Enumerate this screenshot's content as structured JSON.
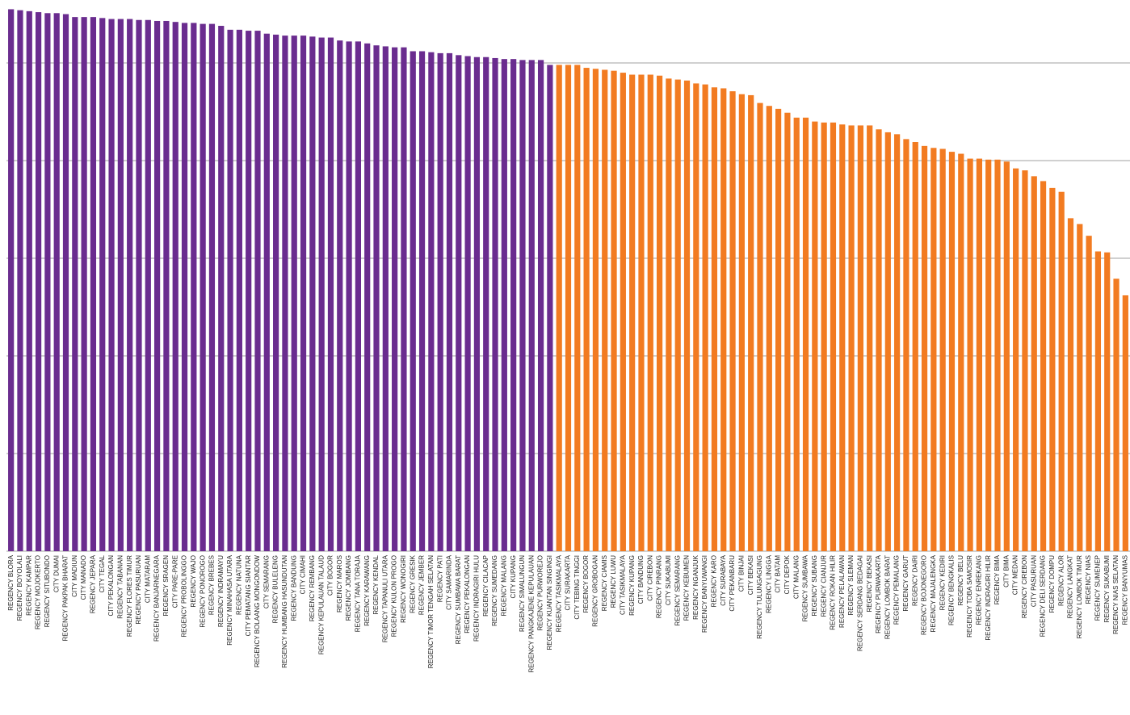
{
  "chart_data": {
    "type": "bar",
    "categories": [
      "REGENCY BLORA",
      "REGENCY BOYOLALI",
      "REGENCY KAMPAR",
      "REGENCY MOJOKERTO",
      "REGENCY SITUBONDO",
      "CITY DUMAI",
      "REGENCY PAKPAK BHARAT",
      "CITY MADIUN",
      "CITY MANADO",
      "REGENCY JEPARA",
      "CITY TEGAL",
      "CITY PEKALONGAN",
      "REGENCY TABANAN",
      "REGENCY FLORES TIMUR",
      "REGENCY PASURUAN",
      "CITY MATARAM",
      "REGENCY BANJARNEGARA",
      "REGENCY SRAGEN",
      "CITY PARE-PARE",
      "REGENCY PROBOLINGGO",
      "REGENCY WAJO",
      "REGENCY PONOROGO",
      "REGENCY BREBES",
      "REGENCY INDRAMAYU",
      "REGENCY MINAHASA UTARA",
      "REGENCY NATUNA",
      "CITY PEMATANG SIANTAR",
      "REGENCY BOLAANG MONGONDOW",
      "CITY SEMARANG",
      "REGENCY BULELENG",
      "REGENCY HUMBANG HASUNDUTAN",
      "REGENCY BANDUNG",
      "CITY CIMAHI",
      "REGENCY REMBANG",
      "REGENCY KEPULAUAN TALAUD",
      "CITY BOGOR",
      "REGENCY MAROS",
      "REGENCY JOMBANG",
      "REGENCY TANA TORAJA",
      "REGENCY KARAWANG",
      "REGENCY KENDAL",
      "REGENCY TAPANULI UTARA",
      "REGENCY KULON PROGO",
      "REGENCY WONOGIRI",
      "REGENCY GRESIK",
      "REGENCY JEMBER",
      "REGENCY TIMOR TENGAH SELATAN",
      "REGENCY PATI",
      "CITY SAMARINDA",
      "REGENCY SUMBAWA BARAT",
      "REGENCY PEKALONGAN",
      "REGENCY INDRAGIRI HULU",
      "REGENCY CILACAP",
      "REGENCY SUMEDANG",
      "REGENCY MALANG",
      "CITY KUPANG",
      "REGENCY SIMALUNGUN",
      "REGENCY PANGKAJENE KEPULAUAN",
      "REGENCY PURWOREJO",
      "REGENCY KUANTAN SINGINGI",
      "REGENCY TASIKMALAYA",
      "CITY SURAKARTA",
      "CITY TEBING TINGGI",
      "REGENCY BOGOR",
      "REGENCY GROBOGAN",
      "REGENCY CIAMIS",
      "REGENCY LUWU",
      "CITY TASIKMALAYA",
      "REGENCY KUPANG",
      "CITY BANDUNG",
      "CITY CIREBON",
      "REGENCY PINRANG",
      "CITY SUKABUMI",
      "REGENCY SEMARANG",
      "REGENCY KEBUMEN",
      "REGENCY NGANJUK",
      "REGENCY BANYUWANGI",
      "REGENCY KARO",
      "CITY SURABAYA",
      "CITY PEKANBARU",
      "CITY BINJAI",
      "CITY BEKASI",
      "REGENCY TULUNGAGUNG",
      "REGENCY LINGGA",
      "CITY BATAM",
      "CITY DEPOK",
      "CITY MALANG",
      "REGENCY SUMBAWA",
      "REGENCY SUBANG",
      "REGENCY CIANJUR",
      "REGENCY ROKAN HILIR",
      "REGENCY PELALAWAN",
      "REGENCY SLEMAN",
      "REGENCY SERDANG BEDAGAI",
      "REGENCY BEKASI",
      "REGENCY PURWAKARTA",
      "REGENCY LOMBOK BARAT",
      "REGENCY PEMALANG",
      "REGENCY GARUT",
      "REGENCY DAIRI",
      "REGENCY BOJONEGORO",
      "REGENCY MAJALENGKA",
      "REGENCY KEDIRI",
      "REGENCY BENGKALIS",
      "REGENCY BELU",
      "REGENCY TOBA SAMOSIR",
      "REGENCY ENREKANG",
      "REGENCY INDRAGIRI HILIR",
      "REGENCY BIMA",
      "CITY BIMA",
      "CITY MEDAN",
      "REGENCY CIREBON",
      "CITY PASURUAN",
      "REGENCY DELI SERDANG",
      "REGENCY DOMPU",
      "REGENCY ALOR",
      "REGENCY LANGKAT",
      "REGENCY LOMBOK TIMUR",
      "REGENCY NIAS",
      "REGENCY SUMENEP",
      "REGENCY SUKABUMI",
      "REGENCY NIAS SELATAN",
      "REGENCY BANYUMAS"
    ],
    "values": [
      5.55,
      5.54,
      5.53,
      5.52,
      5.51,
      5.51,
      5.5,
      5.47,
      5.47,
      5.47,
      5.46,
      5.45,
      5.45,
      5.45,
      5.44,
      5.44,
      5.43,
      5.43,
      5.42,
      5.41,
      5.41,
      5.4,
      5.4,
      5.38,
      5.34,
      5.34,
      5.33,
      5.33,
      5.3,
      5.29,
      5.28,
      5.28,
      5.28,
      5.27,
      5.26,
      5.26,
      5.23,
      5.22,
      5.22,
      5.2,
      5.18,
      5.17,
      5.16,
      5.16,
      5.12,
      5.12,
      5.11,
      5.1,
      5.1,
      5.08,
      5.07,
      5.06,
      5.06,
      5.05,
      5.04,
      5.04,
      5.03,
      5.03,
      5.03,
      4.98,
      4.98,
      4.98,
      4.98,
      4.95,
      4.94,
      4.93,
      4.92,
      4.9,
      4.88,
      4.88,
      4.88,
      4.87,
      4.84,
      4.83,
      4.82,
      4.79,
      4.78,
      4.75,
      4.74,
      4.71,
      4.68,
      4.67,
      4.59,
      4.56,
      4.53,
      4.49,
      4.44,
      4.44,
      4.4,
      4.39,
      4.39,
      4.37,
      4.36,
      4.36,
      4.36,
      4.32,
      4.29,
      4.27,
      4.22,
      4.19,
      4.15,
      4.13,
      4.12,
      4.09,
      4.07,
      4.02,
      4.02,
      4.01,
      4.01,
      3.99,
      3.92,
      3.9,
      3.84,
      3.79,
      3.72,
      3.68,
      3.41,
      3.35,
      3.23,
      3.07,
      3.06,
      2.79,
      2.62
    ],
    "colors": [
      "#6a2c8f",
      "#6a2c8f",
      "#6a2c8f",
      "#6a2c8f",
      "#6a2c8f",
      "#6a2c8f",
      "#6a2c8f",
      "#6a2c8f",
      "#6a2c8f",
      "#6a2c8f",
      "#6a2c8f",
      "#6a2c8f",
      "#6a2c8f",
      "#6a2c8f",
      "#6a2c8f",
      "#6a2c8f",
      "#6a2c8f",
      "#6a2c8f",
      "#6a2c8f",
      "#6a2c8f",
      "#6a2c8f",
      "#6a2c8f",
      "#6a2c8f",
      "#6a2c8f",
      "#6a2c8f",
      "#6a2c8f",
      "#6a2c8f",
      "#6a2c8f",
      "#6a2c8f",
      "#6a2c8f",
      "#6a2c8f",
      "#6a2c8f",
      "#6a2c8f",
      "#6a2c8f",
      "#6a2c8f",
      "#6a2c8f",
      "#6a2c8f",
      "#6a2c8f",
      "#6a2c8f",
      "#6a2c8f",
      "#6a2c8f",
      "#6a2c8f",
      "#6a2c8f",
      "#6a2c8f",
      "#6a2c8f",
      "#6a2c8f",
      "#6a2c8f",
      "#6a2c8f",
      "#6a2c8f",
      "#6a2c8f",
      "#6a2c8f",
      "#6a2c8f",
      "#6a2c8f",
      "#6a2c8f",
      "#6a2c8f",
      "#6a2c8f",
      "#6a2c8f",
      "#6a2c8f",
      "#6a2c8f",
      "#6a2c8f",
      "#f27b21",
      "#f27b21",
      "#f27b21",
      "#f27b21",
      "#f27b21",
      "#f27b21",
      "#f27b21",
      "#f27b21",
      "#f27b21",
      "#f27b21",
      "#f27b21",
      "#f27b21",
      "#f27b21",
      "#f27b21",
      "#f27b21",
      "#f27b21",
      "#f27b21",
      "#f27b21",
      "#f27b21",
      "#f27b21",
      "#f27b21",
      "#f27b21",
      "#f27b21",
      "#f27b21",
      "#f27b21",
      "#f27b21",
      "#f27b21",
      "#f27b21",
      "#f27b21",
      "#f27b21",
      "#f27b21",
      "#f27b21",
      "#f27b21",
      "#f27b21",
      "#f27b21",
      "#f27b21",
      "#f27b21",
      "#f27b21",
      "#f27b21",
      "#f27b21",
      "#f27b21",
      "#f27b21",
      "#f27b21",
      "#f27b21",
      "#f27b21",
      "#f27b21",
      "#f27b21",
      "#f27b21",
      "#f27b21",
      "#f27b21",
      "#f27b21",
      "#f27b21",
      "#f27b21",
      "#f27b21",
      "#f27b21",
      "#f27b21",
      "#f27b21",
      "#f27b21",
      "#f27b21",
      "#f27b21",
      "#f27b21",
      "#f27b21",
      "#f27b21"
    ],
    "ylim": [
      0,
      5.6
    ],
    "yticks": [
      0,
      1,
      2,
      3,
      4,
      5
    ],
    "grid": true
  }
}
